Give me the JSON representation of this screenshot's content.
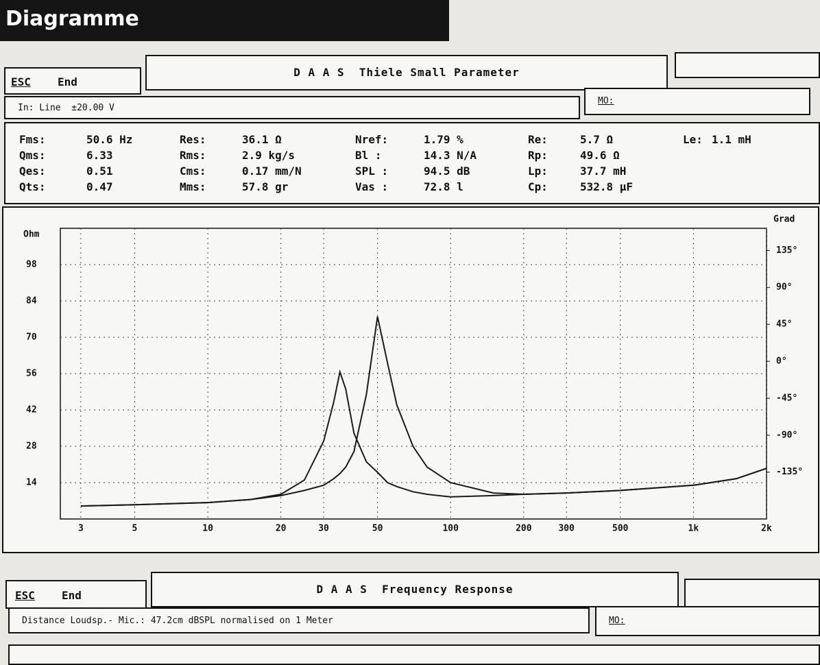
{
  "header": {
    "title": "Diagramme"
  },
  "panel1": {
    "esc": "ESC",
    "end": "End",
    "title": "D A A S  Thiele Small Parameter",
    "input": "In: Line  ±20.00 V",
    "mo": "MO:"
  },
  "params": {
    "columns": [
      [
        [
          "Fms:",
          "50.6 Hz"
        ],
        [
          "Qms:",
          "6.33"
        ],
        [
          "Qes:",
          "0.51"
        ],
        [
          "Qts:",
          "0.47"
        ]
      ],
      [
        [
          "Res:",
          "36.1 Ω"
        ],
        [
          "Rms:",
          "2.9 kg/s"
        ],
        [
          "Cms:",
          "0.17 mm/N"
        ],
        [
          "Mms:",
          "57.8 gr"
        ]
      ],
      [
        [
          "Nref:",
          "1.79 %"
        ],
        [
          "Bl :",
          "14.3 N/A"
        ],
        [
          "SPL :",
          "94.5 dB"
        ],
        [
          "Vas :",
          "72.8 l"
        ]
      ],
      [
        [
          "Re:",
          "5.7 Ω"
        ],
        [
          "Rp:",
          "49.6 Ω"
        ],
        [
          "Lp:",
          "37.7 mH"
        ],
        [
          "Cp:",
          "532.8 µF"
        ]
      ],
      [
        [
          "Le:",
          "1.1 mH"
        ]
      ]
    ]
  },
  "chart_data": {
    "type": "line",
    "y_label": "Ohm",
    "y2_label": "Grad",
    "xscale": "log",
    "grid": true,
    "x": [
      3,
      5,
      10,
      15,
      20,
      25,
      30,
      33,
      35,
      37,
      40,
      45,
      50,
      55,
      60,
      70,
      80,
      100,
      150,
      200,
      300,
      500,
      1000,
      1500,
      2000
    ],
    "series": [
      {
        "color": "#1a1a1a",
        "values": [
          5.0,
          5.5,
          6.3,
          7.5,
          9.5,
          15,
          30,
          45,
          56.7,
          50,
          33,
          22,
          18,
          14,
          12.5,
          10.5,
          9.5,
          8.5,
          9,
          9.5,
          10,
          11,
          13,
          15.5,
          19.5
        ]
      },
      {
        "color": "#1a1a1a",
        "values": [
          5.0,
          5.5,
          6.3,
          7.5,
          9,
          11,
          13,
          15.5,
          17.5,
          20,
          26,
          48,
          78,
          60,
          44,
          28,
          20,
          14,
          10,
          9.5,
          10,
          11,
          13,
          15.5,
          19.5
        ]
      }
    ],
    "xlim": [
      2.47,
      2000
    ],
    "xticks": [
      3,
      5,
      10,
      20,
      30,
      50,
      100,
      200,
      300,
      500,
      {
        "value": 1000,
        "label": "1k"
      },
      {
        "value": 2000,
        "label": "2k"
      }
    ],
    "ylim": [
      0,
      112
    ],
    "yticks": [
      14,
      28,
      42,
      56,
      70,
      84,
      98
    ],
    "y2lim": [
      -192,
      162
    ],
    "y2ticks": [
      {
        "value": 135,
        "label": "135°"
      },
      {
        "value": 90,
        "label": "90°"
      },
      {
        "value": 45,
        "label": "45°"
      },
      {
        "value": 0,
        "label": "0°"
      },
      {
        "value": -45,
        "label": "-45°"
      },
      {
        "value": -90,
        "label": "-90°"
      },
      {
        "value": -135,
        "label": "-135°"
      }
    ]
  },
  "panel2": {
    "esc": "ESC",
    "end": "End",
    "title": "D A A S  Frequency Response",
    "info": "Distance Loudsp.- Mic.: 47.2cm dBSPL normalised on 1 Meter",
    "mo": "MO:"
  }
}
